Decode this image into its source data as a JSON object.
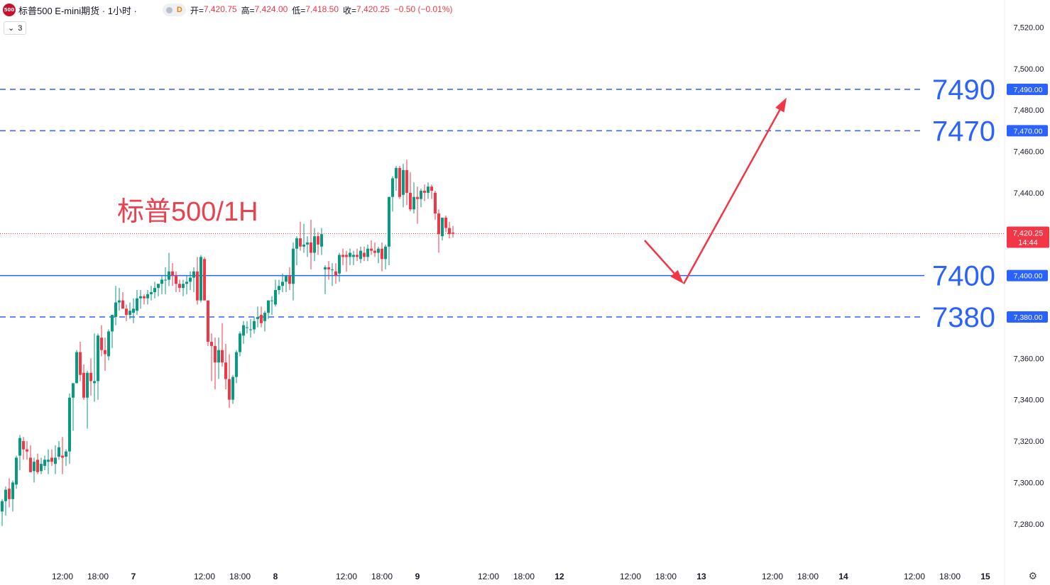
{
  "header": {
    "logo_text": "500",
    "title": "标普500 E-mini期货 · 1小时 ·",
    "d_label": "D",
    "open_label": "开=",
    "open_value": "7,420.75",
    "high_label": "高=",
    "high_value": "7,424.00",
    "low_label": "低=",
    "low_value": "7,418.50",
    "close_label": "收=",
    "close_value": "7,420.25",
    "change": "−0.50 (−0.01%)"
  },
  "indicator_button": {
    "chevron": "⌄",
    "count": "3"
  },
  "settings_icon": "⚙",
  "colors": {
    "up": "#089981",
    "down": "#f23645",
    "line": "#2962ff",
    "arrow": "#f23645",
    "axis_text": "#131722",
    "big_label": "#2962ff",
    "annotation": "#e8414f"
  },
  "chart_data": {
    "type": "candlestick",
    "symbol": "标普500 E-mini期货",
    "interval": "1小时",
    "annotation": "标普500/1H",
    "ylim": [
      7270,
      7527
    ],
    "y_ticks": [
      {
        "value": 7520,
        "label": "7,520.00"
      },
      {
        "value": 7500,
        "label": "7,500.00"
      },
      {
        "value": 7480,
        "label": "7,480.00"
      },
      {
        "value": 7460,
        "label": "7,460.00"
      },
      {
        "value": 7440,
        "label": "7,440.00"
      },
      {
        "value": 7360,
        "label": "7,360.00"
      },
      {
        "value": 7340,
        "label": "7,340.00"
      },
      {
        "value": 7320,
        "label": "7,320.00"
      },
      {
        "value": 7300,
        "label": "7,300.00"
      },
      {
        "value": 7280,
        "label": "7,280.00"
      }
    ],
    "x_ticks": [
      {
        "bar": 17,
        "label": "12:00",
        "bold": false
      },
      {
        "bar": 27,
        "label": "18:00",
        "bold": false
      },
      {
        "bar": 37,
        "label": "7",
        "bold": true
      },
      {
        "bar": 57,
        "label": "12:00",
        "bold": false
      },
      {
        "bar": 67,
        "label": "18:00",
        "bold": false
      },
      {
        "bar": 77,
        "label": "8",
        "bold": true
      },
      {
        "bar": 97,
        "label": "12:00",
        "bold": false
      },
      {
        "bar": 107,
        "label": "18:00",
        "bold": false
      },
      {
        "bar": 117,
        "label": "9",
        "bold": true
      },
      {
        "bar": 137,
        "label": "12:00",
        "bold": false
      },
      {
        "bar": 147,
        "label": "18:00",
        "bold": false
      },
      {
        "bar": 157,
        "label": "12",
        "bold": true
      },
      {
        "bar": 177,
        "label": "12:00",
        "bold": false
      },
      {
        "bar": 187,
        "label": "18:00",
        "bold": false
      },
      {
        "bar": 197,
        "label": "13",
        "bold": true
      },
      {
        "bar": 217,
        "label": "12:00",
        "bold": false
      },
      {
        "bar": 227,
        "label": "18:00",
        "bold": false
      },
      {
        "bar": 237,
        "label": "14",
        "bold": true
      },
      {
        "bar": 257,
        "label": "12:00",
        "bold": false
      },
      {
        "bar": 267,
        "label": "18:00",
        "bold": false
      },
      {
        "bar": 277,
        "label": "15",
        "bold": true
      }
    ],
    "levels": [
      {
        "value": 7490,
        "style": "dashed",
        "big_label": "7490",
        "axis_label": "7,490.00"
      },
      {
        "value": 7470,
        "style": "dashed",
        "big_label": "7470",
        "axis_label": "7,470.00"
      },
      {
        "value": 7400,
        "style": "solid",
        "big_label": "7400",
        "axis_label": "7,400.00"
      },
      {
        "value": 7380,
        "style": "dashed",
        "big_label": "7380",
        "axis_label": "7,380.00"
      }
    ],
    "last_price": {
      "value": 7420.25,
      "label": "7,420.25",
      "countdown": "14:44"
    },
    "projection_arrows": [
      {
        "from": {
          "bar": 181,
          "price": 7417
        },
        "to": {
          "bar": 192,
          "price": 7396
        }
      },
      {
        "from": {
          "bar": 192,
          "price": 7396
        },
        "to": {
          "bar": 221,
          "price": 7486
        }
      }
    ],
    "candles": [
      [
        7286.0,
        7292.0,
        7279.0,
        7291.0
      ],
      [
        7291.0,
        7298.0,
        7284.0,
        7296.5
      ],
      [
        7297.0,
        7302.0,
        7288.0,
        7292.0
      ],
      [
        7292.0,
        7301.0,
        7286.0,
        7300.0
      ],
      [
        7299.0,
        7313.0,
        7297.0,
        7312.0
      ],
      [
        7313.0,
        7323.0,
        7306.0,
        7321.5
      ],
      [
        7320.0,
        7322.0,
        7311.0,
        7316.0
      ],
      [
        7316.0,
        7320.0,
        7311.0,
        7315.0
      ],
      [
        7312.0,
        7318.0,
        7305.0,
        7305.0
      ],
      [
        7305.5,
        7312.0,
        7300.0,
        7310.0
      ],
      [
        7311.0,
        7314.0,
        7304.0,
        7305.0
      ],
      [
        7305.5,
        7312.0,
        7304.0,
        7309.0
      ],
      [
        7308.0,
        7313.0,
        7306.0,
        7311.0
      ],
      [
        7310.0,
        7316.0,
        7304.0,
        7311.0
      ],
      [
        7312.0,
        7316.0,
        7308.0,
        7310.0
      ],
      [
        7309.0,
        7318.0,
        7304.0,
        7312.0
      ],
      [
        7312.5,
        7320.0,
        7311.0,
        7317.0
      ],
      [
        7313.0,
        7322.0,
        7304.0,
        7312.0
      ],
      [
        7312.5,
        7316.0,
        7308.0,
        7315.0
      ],
      [
        7315.0,
        7343.0,
        7309.0,
        7341.0
      ],
      [
        7341.0,
        7348.0,
        7325.0,
        7348.0
      ],
      [
        7348.0,
        7364.0,
        7348.0,
        7363.0
      ],
      [
        7363.0,
        7368.0,
        7349.0,
        7352.0
      ],
      [
        7353.0,
        7357.0,
        7340.0,
        7341.0
      ],
      [
        7341.0,
        7354.0,
        7326.0,
        7353.0
      ],
      [
        7353.0,
        7360.0,
        7342.0,
        7349.0
      ],
      [
        7348.0,
        7372.0,
        7339.0,
        7349.0
      ],
      [
        7349.0,
        7372.0,
        7340.0,
        7371.0
      ],
      [
        7370.0,
        7376.0,
        7361.0,
        7364.0
      ],
      [
        7364.0,
        7370.0,
        7354.0,
        7362.0
      ],
      [
        7361.0,
        7374.0,
        7359.0,
        7373.0
      ],
      [
        7373.0,
        7381.0,
        7365.0,
        7381.0
      ],
      [
        7380.0,
        7395.0,
        7376.0,
        7387.0
      ],
      [
        7387.0,
        7394.0,
        7383.0,
        7388.0
      ],
      [
        7388.0,
        7392.0,
        7384.0,
        7384.0
      ],
      [
        7384.0,
        7386.0,
        7378.0,
        7381.0
      ],
      [
        7381.0,
        7387.0,
        7379.0,
        7383.0
      ],
      [
        7382.0,
        7389.0,
        7377.0,
        7384.0
      ],
      [
        7383.0,
        7393.0,
        7381.0,
        7389.0
      ],
      [
        7389.0,
        7393.0,
        7384.0,
        7390.0
      ],
      [
        7390.0,
        7391.0,
        7386.0,
        7389.0
      ],
      [
        7389.0,
        7393.0,
        7386.0,
        7391.0
      ],
      [
        7391.0,
        7395.0,
        7388.0,
        7392.0
      ],
      [
        7392.0,
        7397.0,
        7389.0,
        7394.0
      ],
      [
        7394.0,
        7396.0,
        7390.0,
        7396.0
      ],
      [
        7396.0,
        7400.0,
        7391.0,
        7398.0
      ],
      [
        7398.0,
        7404.0,
        7391.0,
        7398.0
      ],
      [
        7398.0,
        7411.0,
        7395.0,
        7402.0
      ],
      [
        7402.0,
        7406.0,
        7395.0,
        7400.0
      ],
      [
        7400.0,
        7402.0,
        7392.0,
        7396.0
      ],
      [
        7396.0,
        7398.0,
        7392.0,
        7394.0
      ],
      [
        7394.0,
        7398.0,
        7390.0,
        7396.0
      ],
      [
        7396.0,
        7400.0,
        7391.0,
        7397.0
      ],
      [
        7397.0,
        7402.0,
        7393.0,
        7399.0
      ],
      [
        7399.0,
        7404.0,
        7392.0,
        7402.0
      ],
      [
        7402.0,
        7409.0,
        7386.0,
        7388.0
      ],
      [
        7388.0,
        7410.0,
        7387.0,
        7409.0
      ],
      [
        7408.0,
        7409.0,
        7388.0,
        7388.0
      ],
      [
        7388.0,
        7388.0,
        7366.0,
        7368.0
      ],
      [
        7368.0,
        7372.0,
        7349.0,
        7366.0
      ],
      [
        7366.0,
        7370.0,
        7345.0,
        7358.0
      ],
      [
        7358.0,
        7370.0,
        7350.0,
        7364.0
      ],
      [
        7364.0,
        7377.0,
        7356.0,
        7358.0
      ],
      [
        7358.0,
        7367.0,
        7345.0,
        7350.0
      ],
      [
        7350.0,
        7362.0,
        7336.0,
        7340.0
      ],
      [
        7340.0,
        7352.0,
        7338.0,
        7351.0
      ],
      [
        7351.0,
        7364.0,
        7348.0,
        7363.0
      ],
      [
        7363.0,
        7373.0,
        7361.0,
        7372.0
      ],
      [
        7371.0,
        7378.0,
        7367.0,
        7376.0
      ],
      [
        7375.0,
        7378.0,
        7372.0,
        7375.0
      ],
      [
        7374.0,
        7379.0,
        7370.0,
        7374.0
      ],
      [
        7374.0,
        7380.0,
        7372.0,
        7378.0
      ],
      [
        7379.0,
        7385.0,
        7375.0,
        7380.0
      ],
      [
        7381.0,
        7385.0,
        7375.0,
        7377.0
      ],
      [
        7378.0,
        7383.0,
        7373.0,
        7382.0
      ],
      [
        7382.0,
        7388.0,
        7379.0,
        7388.0
      ],
      [
        7388.0,
        7390.0,
        7381.0,
        7388.0
      ],
      [
        7386.0,
        7398.0,
        7385.0,
        7393.0
      ],
      [
        7393.0,
        7398.0,
        7391.0,
        7395.0
      ],
      [
        7395.0,
        7401.0,
        7392.0,
        7397.0
      ],
      [
        7397.0,
        7400.0,
        7392.0,
        7400.0
      ],
      [
        7400.0,
        7404.0,
        7393.0,
        7396.0
      ],
      [
        7396.0,
        7416.0,
        7388.0,
        7413.0
      ],
      [
        7413.0,
        7419.0,
        7405.0,
        7418.0
      ],
      [
        7418.0,
        7426.0,
        7412.0,
        7414.0
      ],
      [
        7414.0,
        7425.0,
        7411.0,
        7415.0
      ],
      [
        7415.0,
        7419.0,
        7409.0,
        7416.0
      ],
      [
        7416.0,
        7427.0,
        7403.0,
        7411.0
      ],
      [
        7411.0,
        7423.0,
        7407.0,
        7419.0
      ],
      [
        7419.0,
        7421.0,
        7410.0,
        7415.0
      ],
      [
        7414.0,
        7423.0,
        7410.0,
        7420.0
      ],
      [
        7403.0,
        7405.0,
        7391.0,
        7404.0
      ],
      [
        7404.0,
        7407.0,
        7398.0,
        7403.0
      ],
      [
        7403.0,
        7406.0,
        7395.0,
        7403.0
      ],
      [
        7402.0,
        7406.0,
        7396.0,
        7400.0
      ],
      [
        7401.0,
        7411.0,
        7397.0,
        7410.0
      ],
      [
        7410.0,
        7413.0,
        7405.0,
        7409.0
      ],
      [
        7410.0,
        7412.0,
        7402.0,
        7409.0
      ],
      [
        7409.0,
        7413.0,
        7405.0,
        7411.0
      ],
      [
        7409.0,
        7412.0,
        7405.0,
        7410.0
      ],
      [
        7410.0,
        7413.0,
        7407.0,
        7409.0
      ],
      [
        7408.0,
        7414.0,
        7406.0,
        7412.0
      ],
      [
        7411.0,
        7414.0,
        7407.0,
        7409.0
      ],
      [
        7409.0,
        7415.0,
        7407.0,
        7413.0
      ],
      [
        7413.0,
        7417.0,
        7410.0,
        7412.0
      ],
      [
        7412.0,
        7416.0,
        7409.0,
        7411.0
      ],
      [
        7411.0,
        7414.0,
        7406.0,
        7413.0
      ],
      [
        7413.0,
        7416.0,
        7402.0,
        7408.0
      ],
      [
        7408.0,
        7415.0,
        7403.0,
        7414.0
      ],
      [
        7414.0,
        7438.0,
        7405.0,
        7438.0
      ],
      [
        7438.0,
        7448.0,
        7431.0,
        7447.0
      ],
      [
        7447.0,
        7453.0,
        7441.0,
        7452.0
      ],
      [
        7452.0,
        7453.0,
        7437.0,
        7438.0
      ],
      [
        7439.0,
        7454.0,
        7433.0,
        7451.0
      ],
      [
        7451.0,
        7456.0,
        7434.0,
        7440.0
      ],
      [
        7440.0,
        7450.0,
        7431.0,
        7432.0
      ],
      [
        7432.0,
        7445.0,
        7430.0,
        7438.0
      ],
      [
        7438.0,
        7443.0,
        7425.0,
        7437.0
      ],
      [
        7437.0,
        7442.0,
        7433.0,
        7441.0
      ],
      [
        7441.0,
        7444.0,
        7436.0,
        7440.0
      ],
      [
        7440.0,
        7445.0,
        7437.0,
        7443.0
      ],
      [
        7443.0,
        7444.0,
        7437.0,
        7441.0
      ],
      [
        7440.0,
        7441.0,
        7427.0,
        7430.0
      ],
      [
        7430.0,
        7432.0,
        7411.0,
        7420.0
      ],
      [
        7419.0,
        7428.0,
        7417.0,
        7428.0
      ],
      [
        7428.0,
        7429.0,
        7421.0,
        7423.0
      ],
      [
        7423.0,
        7426.0,
        7418.0,
        7420.0
      ],
      [
        7420.75,
        7424.0,
        7418.5,
        7420.25
      ]
    ]
  }
}
